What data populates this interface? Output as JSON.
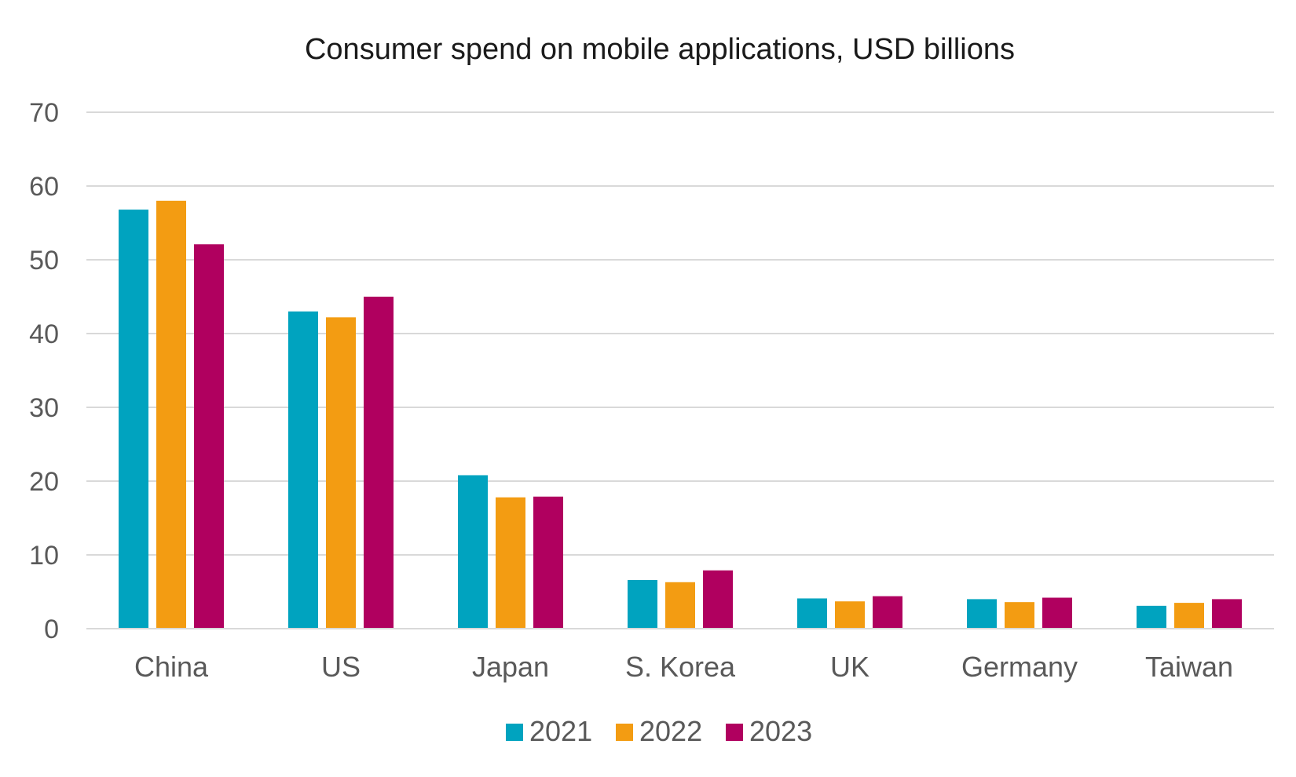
{
  "chart_data": {
    "type": "bar",
    "title": "Consumer spend on mobile applications, USD billions",
    "categories": [
      "China",
      "US",
      "Japan",
      "S. Korea",
      "UK",
      "Germany",
      "Taiwan"
    ],
    "series": [
      {
        "name": "2021",
        "color": "#00a3bf",
        "values": [
          56.8,
          43.0,
          20.8,
          6.6,
          4.1,
          4.0,
          3.1
        ]
      },
      {
        "name": "2022",
        "color": "#f39c12",
        "values": [
          58.0,
          42.2,
          17.8,
          6.3,
          3.7,
          3.6,
          3.5
        ]
      },
      {
        "name": "2023",
        "color": "#b0005f",
        "values": [
          52.1,
          45.0,
          17.9,
          7.9,
          4.4,
          4.2,
          4.0
        ]
      }
    ],
    "ylim": [
      0,
      70
    ],
    "yticks": [
      0,
      10,
      20,
      30,
      40,
      50,
      60,
      70
    ],
    "grid": true,
    "legend": "bottom-center"
  }
}
